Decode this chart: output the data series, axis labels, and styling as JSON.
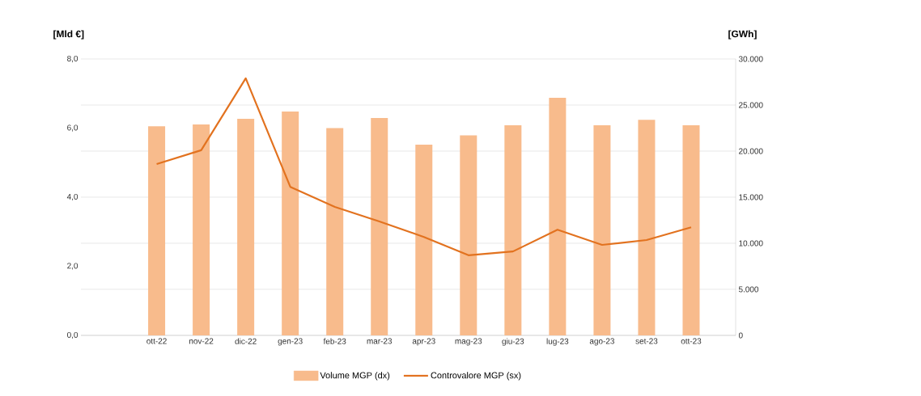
{
  "chart_data": {
    "type": "bar",
    "ylabel": "[Mld €]",
    "y2label": "[GWh]",
    "categories": [
      "ott-22",
      "nov-22",
      "dic-22",
      "gen-23",
      "feb-23",
      "mar-23",
      "apr-23",
      "mag-23",
      "giu-23",
      "lug-23",
      "ago-23",
      "set-23",
      "ott-23"
    ],
    "series": [
      {
        "name": "Volume MGP (dx)",
        "axis": "y2",
        "color": "#f8bb8c",
        "values": [
          22700,
          22900,
          23500,
          24300,
          22500,
          23600,
          20700,
          21700,
          22800,
          25800,
          22800,
          23400,
          22800
        ]
      },
      {
        "name": "Controvalore MGP (sx)",
        "type": "line",
        "axis": "y",
        "color": "#e2721f",
        "values": [
          4.96,
          5.36,
          7.44,
          4.3,
          3.72,
          3.3,
          2.85,
          2.32,
          2.43,
          3.06,
          2.62,
          2.76,
          3.13
        ]
      }
    ],
    "ylim": [
      0,
      8
    ],
    "yticks": [
      {
        "value": 0,
        "label": "0,0"
      },
      {
        "value": 2,
        "label": "2,0"
      },
      {
        "value": 4,
        "label": "4,0"
      },
      {
        "value": 6,
        "label": "6,0"
      },
      {
        "value": 8,
        "label": "8,0"
      }
    ],
    "y2lim": [
      0,
      30000
    ],
    "y2ticks": [
      0,
      {
        "value": 5000,
        "label": "5.000"
      },
      {
        "value": 10000,
        "label": "10.000"
      },
      {
        "value": 15000,
        "label": "15.000"
      },
      {
        "value": 20000,
        "label": "20.000"
      },
      {
        "value": 25000,
        "label": "25.000"
      },
      {
        "value": 30000,
        "label": "30.000"
      }
    ],
    "grid": "y",
    "legend": "bottom"
  }
}
